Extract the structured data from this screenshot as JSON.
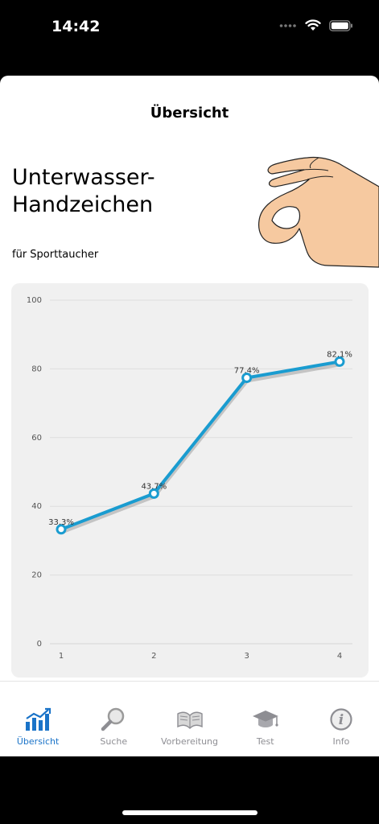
{
  "status": {
    "time": "14:42"
  },
  "nav": {
    "title": "Übersicht"
  },
  "hero": {
    "title_line1": "Unterwasser-",
    "title_line2": "Handzeichen",
    "subtitle": "für Sporttaucher"
  },
  "chart_data": {
    "type": "line",
    "x": [
      1,
      2,
      3,
      4
    ],
    "values": [
      33.3,
      43.7,
      77.4,
      82.1
    ],
    "data_labels": [
      "33.3%",
      "43.7%",
      "77.4%",
      "82.1%"
    ],
    "x_ticks": [
      "1",
      "2",
      "3",
      "4"
    ],
    "y_ticks": [
      "0",
      "20",
      "40",
      "60",
      "80",
      "100"
    ],
    "ylim": [
      0,
      100
    ],
    "grid": true,
    "color": "#1a9cd0"
  },
  "tabs": [
    {
      "label": "Übersicht",
      "icon": "chart-icon",
      "active": true
    },
    {
      "label": "Suche",
      "icon": "search-icon",
      "active": false
    },
    {
      "label": "Vorbereitung",
      "icon": "book-icon",
      "active": false
    },
    {
      "label": "Test",
      "icon": "graduation-cap-icon",
      "active": false
    },
    {
      "label": "Info",
      "icon": "info-icon",
      "active": false
    }
  ],
  "colors": {
    "accent": "#1a73c8",
    "inactive": "#8e8e93",
    "line": "#1a9cd0"
  }
}
